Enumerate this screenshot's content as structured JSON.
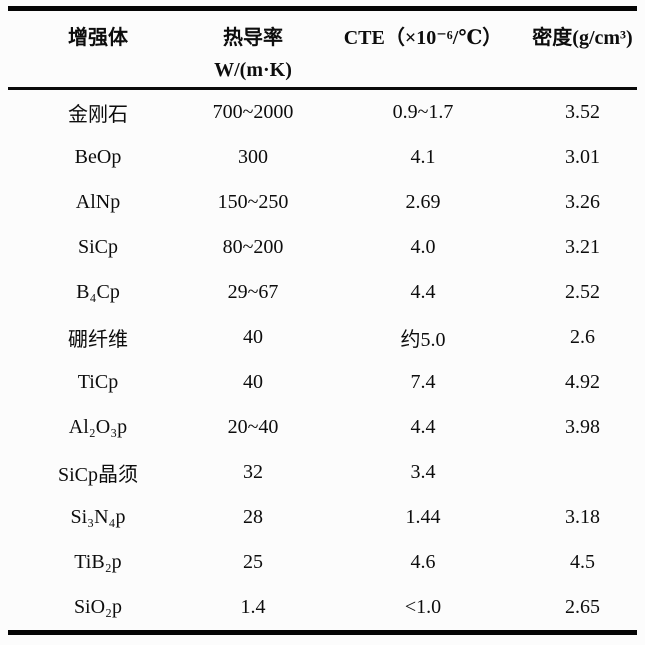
{
  "table": {
    "columns": [
      {
        "label_line1": "增强体",
        "label_line2": ""
      },
      {
        "label_line1": "热导率",
        "label_line2": "W/(m·K)"
      },
      {
        "label_line1": "CTE（×10⁻⁶/℃）",
        "label_line2": ""
      },
      {
        "label_line1": "密度(g/cm³)",
        "label_line2": ""
      }
    ],
    "rows": [
      [
        "金刚石",
        "700~2000",
        "0.9~1.7",
        "3.52"
      ],
      [
        "BeOp",
        "300",
        "4.1",
        "3.01"
      ],
      [
        "AlNp",
        "150~250",
        "2.69",
        "3.26"
      ],
      [
        "SiCp",
        "80~200",
        "4.0",
        "3.21"
      ],
      [
        "B₄Cp",
        "29~67",
        "4.4",
        "2.52"
      ],
      [
        "硼纤维",
        "40",
        "约5.0",
        "2.6"
      ],
      [
        "TiCp",
        "40",
        "7.4",
        "4.92"
      ],
      [
        "Al₂O₃p",
        "20~40",
        "4.4",
        "3.98"
      ],
      [
        "SiCp晶须",
        "32",
        "3.4",
        ""
      ],
      [
        "Si₃N₄p",
        "28",
        "1.44",
        "3.18"
      ],
      [
        "TiB₂p",
        "25",
        "4.6",
        "4.5"
      ],
      [
        "SiO₂p",
        "1.4",
        "<1.0",
        "2.65"
      ]
    ],
    "colors": {
      "rule": "#050505",
      "text": "#0d0d0d",
      "background": "#fcfcfc"
    }
  }
}
